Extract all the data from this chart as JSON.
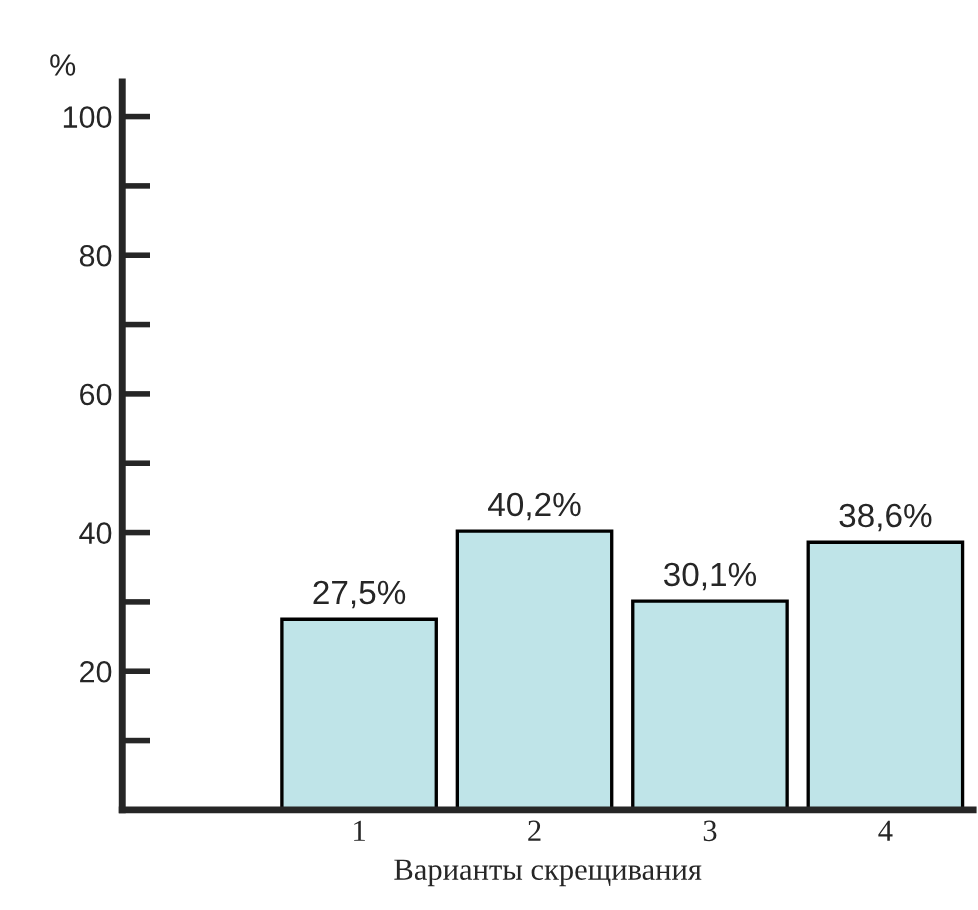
{
  "chart_data": {
    "type": "bar",
    "ylabel": "%",
    "xlabel": "Варианты скрещивания",
    "categories": [
      "1",
      "2",
      "3",
      "4"
    ],
    "values": [
      27.5,
      40.2,
      30.1,
      38.6
    ],
    "value_labels": [
      "27,5%",
      "40,2%",
      "30,1%",
      "38,6%"
    ],
    "color": "#bfe4e8",
    "ylim": [
      0,
      105
    ],
    "yticks": [
      {
        "value": 10,
        "label": null
      },
      20,
      {
        "value": 30,
        "label": null
      },
      40,
      {
        "value": 50,
        "label": null
      },
      60,
      {
        "value": 70,
        "label": null
      },
      80,
      {
        "value": 90,
        "label": null
      },
      100
    ],
    "grid": false,
    "legend": false
  }
}
